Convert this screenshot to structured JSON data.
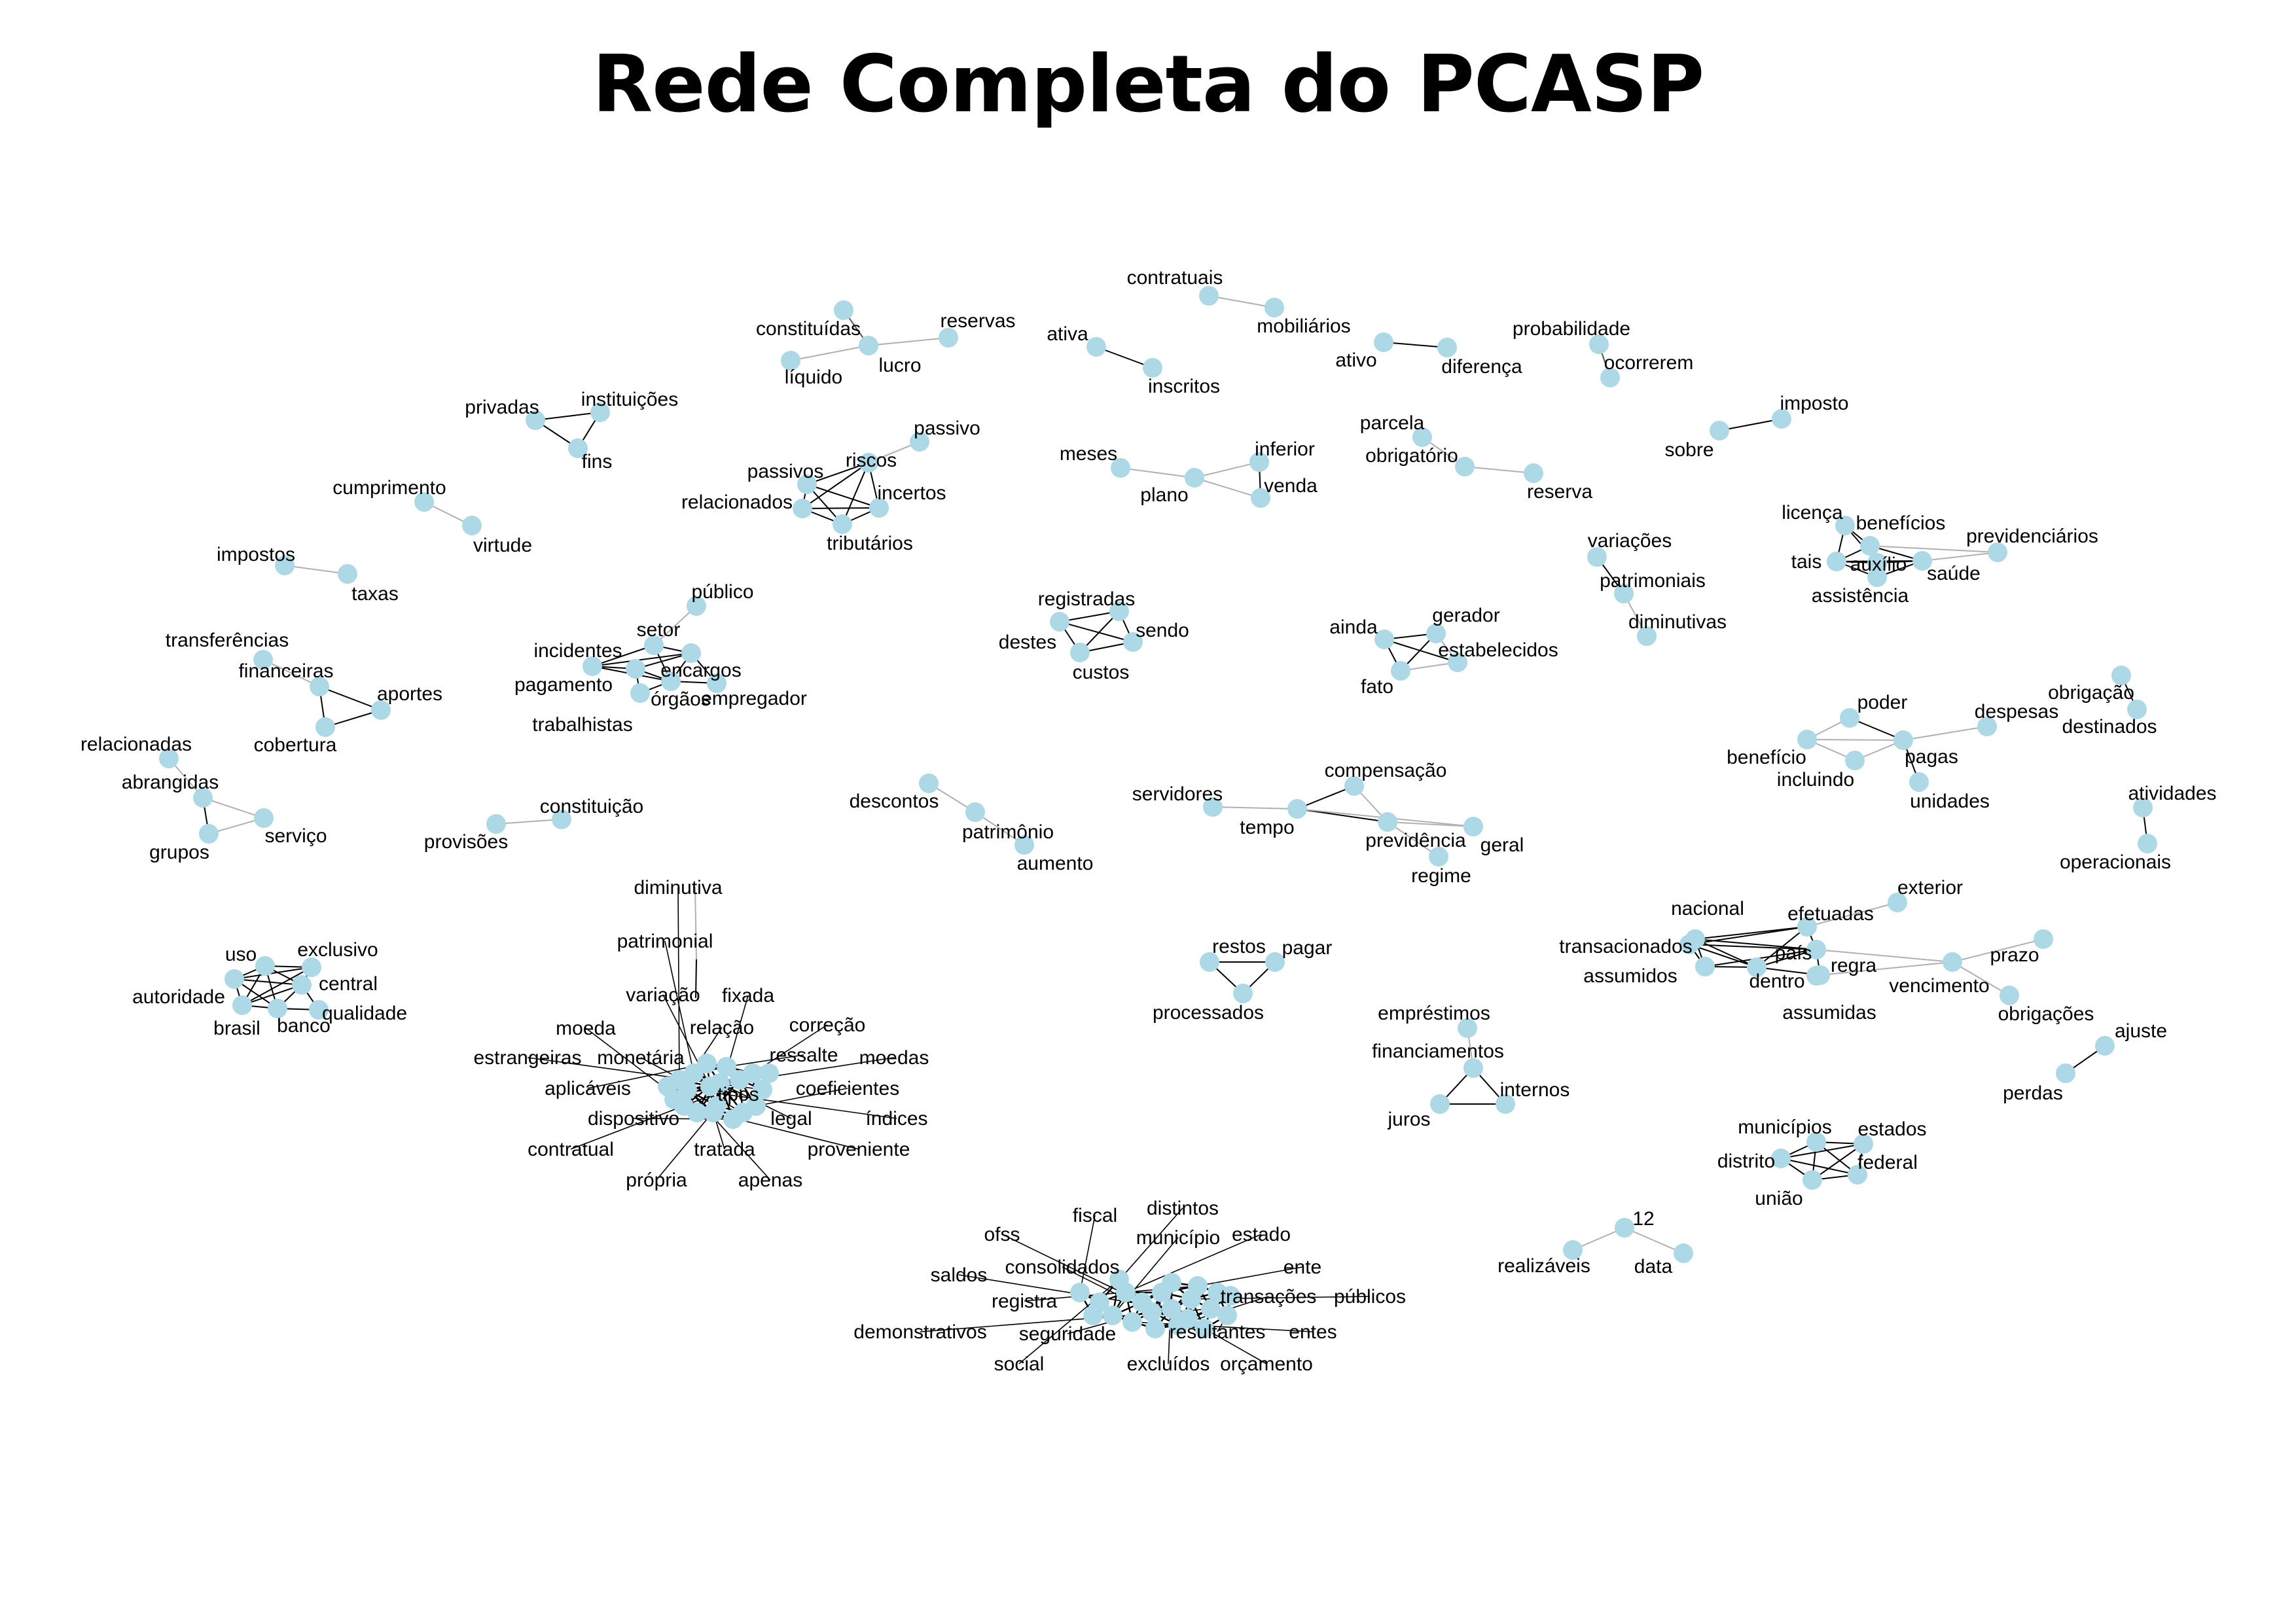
{
  "title": "Rede Completa do PCASP",
  "style": {
    "node_color": "#add8e6",
    "edge_color": "#000000",
    "weak_edge_color": "#b0b0b0",
    "label_color": "#000000"
  },
  "clusters": [
    {
      "nodes": [
        "contratuais",
        "mobiliários"
      ],
      "edges": [
        [
          "contratuais",
          "mobiliários",
          1
        ]
      ]
    },
    {
      "nodes": [
        "constituídas",
        "líquido",
        "lucro",
        "reservas"
      ],
      "edges": [
        [
          "constituídas",
          "lucro",
          2
        ],
        [
          "líquido",
          "lucro",
          1
        ],
        [
          "lucro",
          "reservas",
          1
        ]
      ]
    },
    {
      "nodes": [
        "ativa",
        "inscritos"
      ],
      "edges": [
        [
          "ativa",
          "inscritos",
          3
        ]
      ]
    },
    {
      "nodes": [
        "ativo",
        "diferença"
      ],
      "edges": [
        [
          "ativo",
          "diferença",
          3
        ]
      ]
    },
    {
      "nodes": [
        "probabilidade",
        "ocorrerem"
      ],
      "edges": [
        [
          "probabilidade",
          "ocorrerem",
          2
        ]
      ]
    },
    {
      "nodes": [
        "privadas",
        "instituições",
        "fins"
      ],
      "edges": [
        [
          "privadas",
          "instituições",
          3
        ],
        [
          "privadas",
          "fins",
          3
        ],
        [
          "instituições",
          "fins",
          3
        ]
      ]
    },
    {
      "nodes": [
        "imposto",
        "sobre"
      ],
      "edges": [
        [
          "sobre",
          "imposto",
          3
        ]
      ]
    },
    {
      "nodes": [
        "passivo",
        "riscos",
        "passivos",
        "incertos",
        "relacionados",
        "tributários"
      ],
      "edges": [
        [
          "passivo",
          "riscos",
          1
        ],
        [
          "riscos",
          "passivos",
          3
        ],
        [
          "riscos",
          "incertos",
          3
        ],
        [
          "riscos",
          "relacionados",
          3
        ],
        [
          "riscos",
          "tributários",
          3
        ],
        [
          "passivos",
          "incertos",
          3
        ],
        [
          "passivos",
          "relacionados",
          3
        ],
        [
          "passivos",
          "tributários",
          3
        ],
        [
          "incertos",
          "relacionados",
          3
        ],
        [
          "incertos",
          "tributários",
          3
        ],
        [
          "relacionados",
          "tributários",
          3
        ]
      ]
    },
    {
      "nodes": [
        "meses",
        "plano",
        "inferior",
        "venda"
      ],
      "edges": [
        [
          "meses",
          "plano",
          1
        ],
        [
          "plano",
          "inferior",
          1
        ],
        [
          "plano",
          "venda",
          1
        ],
        [
          "inferior",
          "venda",
          3
        ]
      ]
    },
    {
      "nodes": [
        "parcela",
        "obrigatório",
        "reserva"
      ],
      "edges": [
        [
          "parcela",
          "obrigatório",
          1
        ],
        [
          "obrigatório",
          "reserva",
          1
        ]
      ]
    },
    {
      "nodes": [
        "cumprimento",
        "virtude"
      ],
      "edges": [
        [
          "cumprimento",
          "virtude",
          1
        ]
      ]
    },
    {
      "nodes": [
        "licença",
        "benefícios",
        "previdenciários",
        "tais",
        "auxílio",
        "saúde",
        "assistência"
      ],
      "edges": [
        [
          "licença",
          "benefícios",
          3
        ],
        [
          "licença",
          "tais",
          3
        ],
        [
          "licença",
          "auxílio",
          3
        ],
        [
          "benefícios",
          "previdenciários",
          1
        ],
        [
          "benefícios",
          "tais",
          3
        ],
        [
          "benefícios",
          "auxílio",
          3
        ],
        [
          "benefícios",
          "saúde",
          3
        ],
        [
          "tais",
          "auxílio",
          3
        ],
        [
          "tais",
          "saúde",
          3
        ],
        [
          "tais",
          "assistência",
          3
        ],
        [
          "auxílio",
          "saúde",
          3
        ],
        [
          "auxílio",
          "assistência",
          3
        ],
        [
          "saúde",
          "assistência",
          3
        ],
        [
          "saúde",
          "previdenciários",
          1
        ]
      ]
    },
    {
      "nodes": [
        "variações",
        "patrimoniais",
        "diminutivas"
      ],
      "edges": [
        [
          "variações",
          "patrimoniais",
          3
        ],
        [
          "patrimoniais",
          "diminutivas",
          1
        ]
      ]
    },
    {
      "nodes": [
        "impostos",
        "taxas"
      ],
      "edges": [
        [
          "impostos",
          "taxas",
          1
        ]
      ]
    },
    {
      "nodes": [
        "público",
        "setor",
        "incidentes",
        "encargos",
        "pagamento",
        "órgãos",
        "empregador",
        "trabalhistas"
      ],
      "edges": [
        [
          "público",
          "setor",
          1
        ],
        [
          "setor",
          "incidentes",
          3
        ],
        [
          "setor",
          "encargos",
          3
        ],
        [
          "setor",
          "órgãos",
          3
        ],
        [
          "incidentes",
          "encargos",
          3
        ],
        [
          "incidentes",
          "pagamento",
          3
        ],
        [
          "incidentes",
          "órgãos",
          3
        ],
        [
          "encargos",
          "pagamento",
          3
        ],
        [
          "encargos",
          "órgãos",
          3
        ],
        [
          "encargos",
          "empregador",
          3
        ],
        [
          "pagamento",
          "órgãos",
          3
        ],
        [
          "pagamento",
          "trabalhistas",
          3
        ],
        [
          "órgãos",
          "empregador",
          3
        ],
        [
          "órgãos",
          "trabalhistas",
          3
        ]
      ]
    },
    {
      "nodes": [
        "registradas",
        "destes",
        "sendo",
        "custos"
      ],
      "edges": [
        [
          "registradas",
          "destes",
          3
        ],
        [
          "registradas",
          "sendo",
          3
        ],
        [
          "registradas",
          "custos",
          3
        ],
        [
          "destes",
          "sendo",
          3
        ],
        [
          "destes",
          "custos",
          3
        ],
        [
          "sendo",
          "custos",
          3
        ]
      ]
    },
    {
      "nodes": [
        "ainda",
        "gerador",
        "estabelecidos",
        "fato"
      ],
      "edges": [
        [
          "ainda",
          "gerador",
          3
        ],
        [
          "ainda",
          "estabelecidos",
          3
        ],
        [
          "ainda",
          "fato",
          3
        ],
        [
          "gerador",
          "fato",
          3
        ],
        [
          "gerador",
          "estabelecidos",
          1
        ],
        [
          "fato",
          "estabelecidos",
          1
        ]
      ]
    },
    {
      "nodes": [
        "transferências",
        "financeiras",
        "aportes",
        "cobertura"
      ],
      "edges": [
        [
          "transferências",
          "financeiras",
          1
        ],
        [
          "financeiras",
          "aportes",
          3
        ],
        [
          "financeiras",
          "cobertura",
          3
        ],
        [
          "aportes",
          "cobertura",
          3
        ]
      ]
    },
    {
      "nodes": [
        "obrigação",
        "destinados"
      ],
      "edges": [
        [
          "obrigação",
          "destinados",
          3
        ]
      ]
    },
    {
      "nodes": [
        "poder",
        "despesas",
        "benefício",
        "incluindo",
        "pagas",
        "unidades"
      ],
      "edges": [
        [
          "poder",
          "benefício",
          1
        ],
        [
          "poder",
          "pagas",
          3
        ],
        [
          "benefício",
          "incluindo",
          1
        ],
        [
          "benefício",
          "pagas",
          1
        ],
        [
          "incluindo",
          "pagas",
          1
        ],
        [
          "pagas",
          "despesas",
          1
        ],
        [
          "pagas",
          "unidades",
          3
        ]
      ]
    },
    {
      "nodes": [
        "relacionadas",
        "abrangidas",
        "serviço",
        "grupos"
      ],
      "edges": [
        [
          "relacionadas",
          "abrangidas",
          1
        ],
        [
          "abrangidas",
          "serviço",
          1
        ],
        [
          "abrangidas",
          "grupos",
          3
        ],
        [
          "grupos",
          "serviço",
          1
        ]
      ]
    },
    {
      "nodes": [
        "constituição",
        "provisões"
      ],
      "edges": [
        [
          "provisões",
          "constituição",
          1
        ]
      ]
    },
    {
      "nodes": [
        "descontos",
        "patrimônio",
        "aumento"
      ],
      "edges": [
        [
          "descontos",
          "patrimônio",
          1
        ],
        [
          "patrimônio",
          "aumento",
          1
        ]
      ]
    },
    {
      "nodes": [
        "compensação",
        "servidores",
        "tempo",
        "previdência",
        "geral",
        "regime"
      ],
      "edges": [
        [
          "compensação",
          "tempo",
          3
        ],
        [
          "compensação",
          "previdência",
          1
        ],
        [
          "servidores",
          "tempo",
          1
        ],
        [
          "tempo",
          "previdência",
          3
        ],
        [
          "previdência",
          "geral",
          1
        ],
        [
          "previdência",
          "regime",
          1
        ],
        [
          "tempo",
          "geral",
          1
        ]
      ]
    },
    {
      "nodes": [
        "atividades",
        "operacionais"
      ],
      "edges": [
        [
          "atividades",
          "operacionais",
          3
        ]
      ]
    },
    {
      "nodes": [
        "uso",
        "exclusivo",
        "central",
        "autoridade",
        "brasil",
        "banco",
        "qualidade"
      ],
      "edges": [
        [
          "uso",
          "exclusivo",
          3
        ],
        [
          "uso",
          "central",
          3
        ],
        [
          "uso",
          "autoridade",
          3
        ],
        [
          "uso",
          "brasil",
          3
        ],
        [
          "uso",
          "banco",
          3
        ],
        [
          "exclusivo",
          "central",
          3
        ],
        [
          "exclusivo",
          "autoridade",
          3
        ],
        [
          "exclusivo",
          "brasil",
          3
        ],
        [
          "central",
          "autoridade",
          3
        ],
        [
          "central",
          "brasil",
          3
        ],
        [
          "central",
          "banco",
          3
        ],
        [
          "central",
          "qualidade",
          3
        ],
        [
          "autoridade",
          "brasil",
          3
        ],
        [
          "autoridade",
          "banco",
          3
        ],
        [
          "brasil",
          "banco",
          3
        ],
        [
          "banco",
          "qualidade",
          3
        ]
      ]
    },
    {
      "nodes": [
        "restos",
        "pagar",
        "processados"
      ],
      "edges": [
        [
          "restos",
          "pagar",
          3
        ],
        [
          "restos",
          "processados",
          3
        ],
        [
          "pagar",
          "processados",
          3
        ]
      ]
    },
    {
      "nodes": [
        "exterior",
        "nacional",
        "efetuadas",
        "transacionados",
        "país",
        "assumidos",
        "dentro",
        "regra",
        "assumidas",
        "vencimento",
        "prazo",
        "obrigações"
      ],
      "edges": [
        [
          "nacional",
          "efetuadas",
          3
        ],
        [
          "nacional",
          "transacionados",
          3
        ],
        [
          "nacional",
          "país",
          3
        ],
        [
          "nacional",
          "assumidos",
          3
        ],
        [
          "nacional",
          "dentro",
          3
        ],
        [
          "efetuadas",
          "país",
          3
        ],
        [
          "efetuadas",
          "dentro",
          3
        ],
        [
          "efetuadas",
          "exterior",
          1
        ],
        [
          "efetuadas",
          "transacionados",
          3
        ],
        [
          "transacionados",
          "país",
          3
        ],
        [
          "transacionados",
          "assumidos",
          3
        ],
        [
          "transacionados",
          "dentro",
          3
        ],
        [
          "país",
          "assumidos",
          3
        ],
        [
          "país",
          "dentro",
          3
        ],
        [
          "país",
          "regra",
          3
        ],
        [
          "país",
          "vencimento",
          1
        ],
        [
          "assumidos",
          "dentro",
          3
        ],
        [
          "dentro",
          "regra",
          3
        ],
        [
          "regra",
          "assumidas",
          3
        ],
        [
          "regra",
          "vencimento",
          1
        ],
        [
          "vencimento",
          "prazo",
          1
        ],
        [
          "vencimento",
          "obrigações",
          1
        ]
      ]
    },
    {
      "nodes": [
        "ajuste",
        "perdas"
      ],
      "edges": [
        [
          "ajuste",
          "perdas",
          3
        ]
      ]
    },
    {
      "nodes": [
        "empréstimos",
        "financiamentos",
        "internos",
        "juros"
      ],
      "edges": [
        [
          "empréstimos",
          "financiamentos",
          1
        ],
        [
          "financiamentos",
          "internos",
          3
        ],
        [
          "financiamentos",
          "juros",
          3
        ],
        [
          "internos",
          "juros",
          3
        ]
      ]
    },
    {
      "nodes": [
        "municípios",
        "estados",
        "distrito",
        "federal",
        "união"
      ],
      "edges": [
        [
          "municípios",
          "estados",
          3
        ],
        [
          "municípios",
          "distrito",
          3
        ],
        [
          "municípios",
          "federal",
          3
        ],
        [
          "municípios",
          "união",
          3
        ],
        [
          "estados",
          "distrito",
          3
        ],
        [
          "estados",
          "federal",
          3
        ],
        [
          "estados",
          "união",
          3
        ],
        [
          "distrito",
          "federal",
          3
        ],
        [
          "distrito",
          "união",
          3
        ],
        [
          "federal",
          "união",
          3
        ]
      ]
    },
    {
      "nodes": [
        "12",
        "realizáveis",
        "data"
      ],
      "edges": [
        [
          "12",
          "realizáveis",
          1
        ],
        [
          "12",
          "data",
          1
        ]
      ]
    },
    {
      "nodes": [
        "diminutiva",
        "patrimonial",
        "variação",
        "fixada",
        "moeda",
        "relação",
        "correção",
        "estrangeiras",
        "monetária",
        "ressalte",
        "moedas",
        "aplicáveis",
        "coeficientes",
        "dispositivo",
        "legal",
        "índices",
        "contratual",
        "tratada",
        "proveniente",
        "própria",
        "apenas",
        "tipos"
      ],
      "hub": "tipos",
      "edges": [
        [
          "diminutiva",
          "patrimonial",
          1
        ],
        [
          "patrimonial",
          "variação",
          3
        ]
      ]
    },
    {
      "nodes": [
        "fiscal",
        "distintos",
        "município",
        "estado",
        "ofss",
        "consolidados",
        "ente",
        "saldos",
        "transações",
        "públicos",
        "registra",
        "demonstrativos",
        "seguridade",
        "resultantes",
        "entes",
        "social",
        "excluídos",
        "orçamento"
      ],
      "hub": "município",
      "edges": []
    }
  ]
}
